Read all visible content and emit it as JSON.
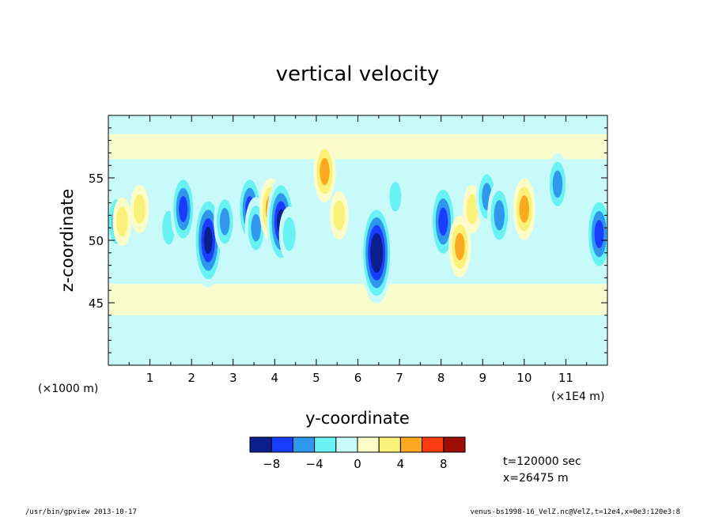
{
  "chart_data": {
    "type": "heatmap",
    "title": "vertical velocity",
    "xlabel": "y-coordinate",
    "ylabel": "z-coordinate",
    "x_unit_left": "(×1000 m)",
    "x_unit_right": "(×1E4 m)",
    "xlim": [
      0,
      120000
    ],
    "ylim": [
      40000,
      60000
    ],
    "xticks": [
      "1",
      "2",
      "3",
      "4",
      "5",
      "6",
      "7",
      "8",
      "9",
      "10",
      "11"
    ],
    "yticks": [
      "45",
      "50",
      "55"
    ],
    "colorbar": {
      "levels": [
        -10,
        -8,
        -6,
        -4,
        -2,
        0,
        2,
        4,
        6,
        8,
        10
      ],
      "tick_labels": [
        "−8",
        "−4",
        "0",
        "4",
        "8"
      ],
      "colors": [
        "#0a1e8c",
        "#1a3cff",
        "#2f97ec",
        "#68f2f3",
        "#c8fafa",
        "#fdfcc8",
        "#faf178",
        "#fba91f",
        "#fc3a11",
        "#9d0d06"
      ]
    },
    "features": [
      {
        "y": 2000,
        "z": 51500,
        "w": -5
      },
      {
        "y": 3300,
        "z": 51500,
        "w": 3
      },
      {
        "y": 7500,
        "z": 52500,
        "w": 3
      },
      {
        "y": 14500,
        "z": 51000,
        "w": -4
      },
      {
        "y": 18000,
        "z": 52500,
        "w": -7
      },
      {
        "y": 24000,
        "z": 50000,
        "w": -10
      },
      {
        "y": 28000,
        "z": 51500,
        "w": -5
      },
      {
        "y": 34000,
        "z": 52500,
        "w": -7
      },
      {
        "y": 35500,
        "z": 51000,
        "w": -5
      },
      {
        "y": 39000,
        "z": 52500,
        "w": 5
      },
      {
        "y": 41500,
        "z": 51500,
        "w": -9
      },
      {
        "y": 43500,
        "z": 50500,
        "w": -4
      },
      {
        "y": 52000,
        "z": 55500,
        "w": 5
      },
      {
        "y": 55500,
        "z": 52000,
        "w": 3
      },
      {
        "y": 64500,
        "z": 49000,
        "w": -11
      },
      {
        "y": 69000,
        "z": 53500,
        "w": -3
      },
      {
        "y": 80500,
        "z": 51500,
        "w": -8
      },
      {
        "y": 84500,
        "z": 49500,
        "w": 5
      },
      {
        "y": 87500,
        "z": 52500,
        "w": 3
      },
      {
        "y": 91000,
        "z": 53500,
        "w": -5
      },
      {
        "y": 94000,
        "z": 52000,
        "w": -6
      },
      {
        "y": 100000,
        "z": 52500,
        "w": 5
      },
      {
        "y": 108000,
        "z": 54500,
        "w": -5
      },
      {
        "y": 118000,
        "z": 50500,
        "w": -8
      }
    ]
  },
  "info": {
    "time": "t=120000 sec",
    "position": "x=26475 m"
  },
  "footer": {
    "left": "/usr/bin/gpview   2013-10-17",
    "right": "venus-bs1998-16_VelZ.nc@VelZ,t=12e4,x=0e3:120e3:8"
  }
}
